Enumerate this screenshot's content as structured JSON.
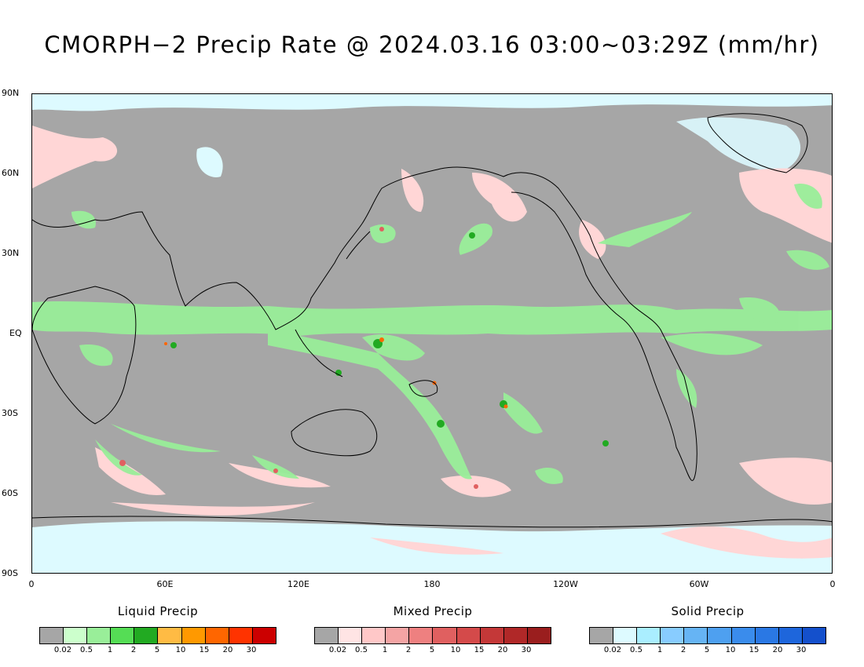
{
  "title": "CMORPH−2 Precip Rate @ 2024.03.16 03:00~03:29Z (mm/hr)",
  "lat_labels": [
    "90N",
    "60N",
    "30N",
    "EQ",
    "30S",
    "60S",
    "90S"
  ],
  "lon_labels": [
    "0",
    "60E",
    "120E",
    "180",
    "120W",
    "60W",
    "0"
  ],
  "legends": [
    {
      "title": "Liquid Precip",
      "colors": [
        "#a6a6a6",
        "#ccffcc",
        "#99ee99",
        "#55dd55",
        "#22aa22",
        "#ffbb44",
        "#ff9900",
        "#ff6600",
        "#ff3300",
        "#cc0000"
      ],
      "ticks": [
        "0.02",
        "0.5",
        "1",
        "2",
        "5",
        "10",
        "15",
        "20",
        "30"
      ]
    },
    {
      "title": "Mixed Precip",
      "colors": [
        "#a6a6a6",
        "#ffe4e4",
        "#ffc8c8",
        "#f4a4a4",
        "#ee8080",
        "#e06060",
        "#d44a4a",
        "#c43838",
        "#b02828",
        "#9a1e1e"
      ],
      "ticks": [
        "0.02",
        "0.5",
        "1",
        "2",
        "5",
        "10",
        "15",
        "20",
        "30"
      ]
    },
    {
      "title": "Solid Precip",
      "colors": [
        "#a6a6a6",
        "#ddfaff",
        "#aaeeff",
        "#88ccff",
        "#66b4f4",
        "#4ea0f0",
        "#3a8cec",
        "#2a78e4",
        "#1e66dc",
        "#1450cc"
      ],
      "ticks": [
        "0.02",
        "0.5",
        "1",
        "2",
        "5",
        "10",
        "15",
        "20",
        "30"
      ]
    }
  ],
  "map": {
    "background_color": "#a6a6a6",
    "colors": {
      "liquid": "#99ee99",
      "liquid_strong": "#22aa22",
      "liquid_peak": "#ff6600",
      "mixed": "#ffd6d6",
      "mixed_strong": "#e06060",
      "solid": "#ddfaff"
    }
  }
}
